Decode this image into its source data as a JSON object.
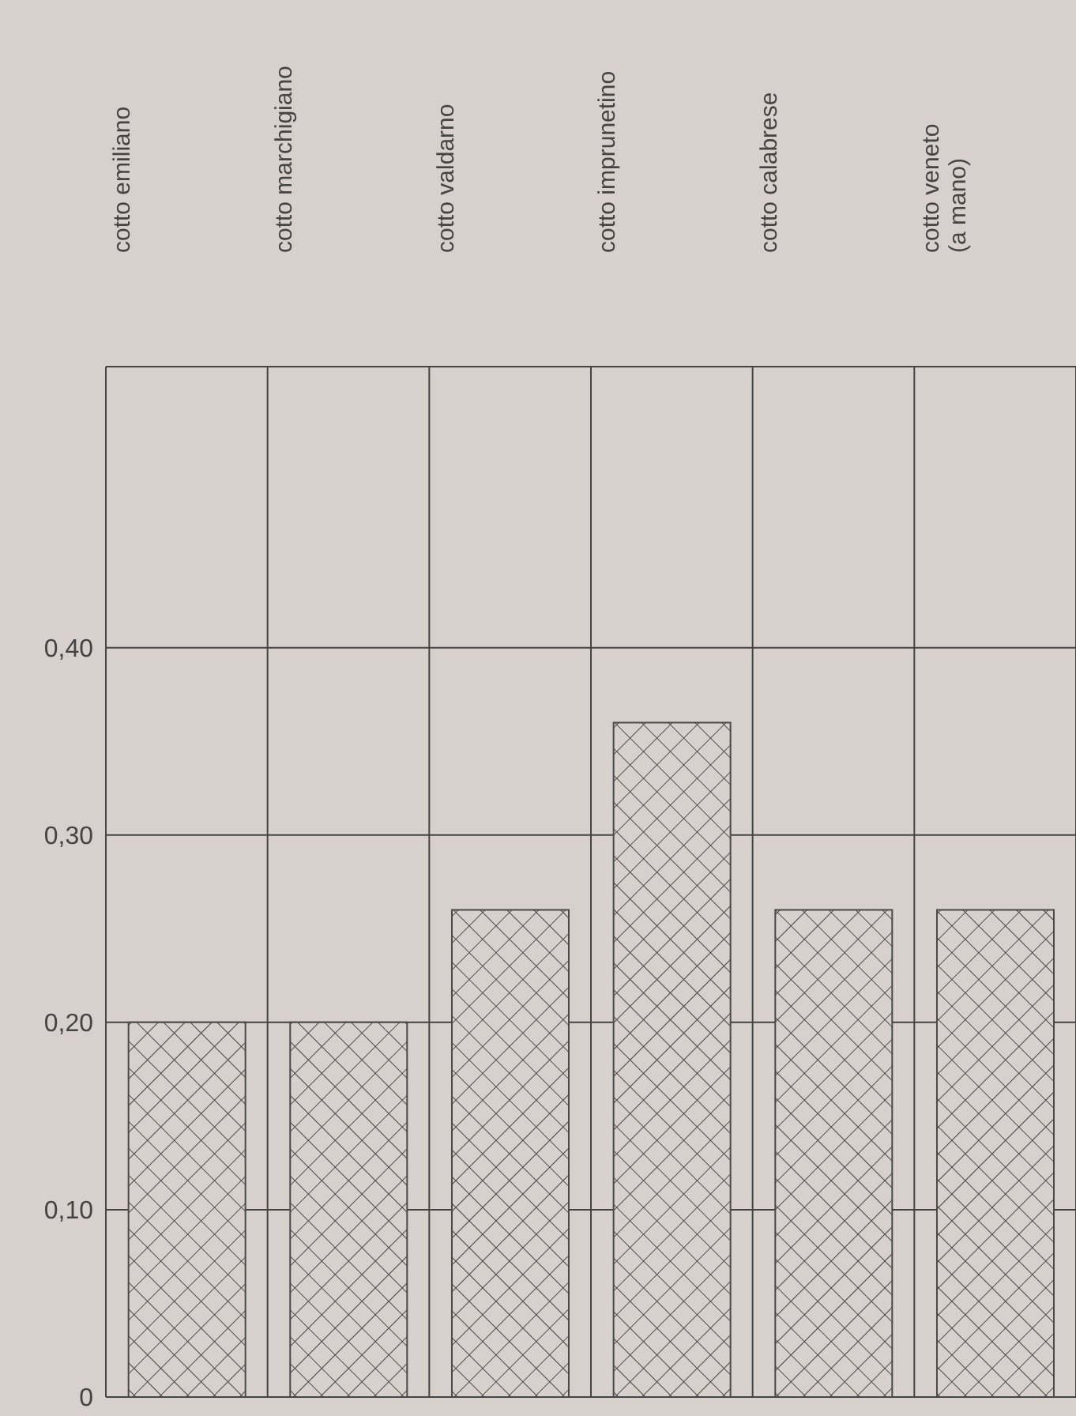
{
  "chart_data": {
    "type": "bar",
    "categories": [
      "cotto emiliano",
      "cotto marchigiano",
      "cotto valdarno",
      "cotto imprunetino",
      "cotto calabrese",
      "cotto veneto\n(a mano)"
    ],
    "values": [
      0.2,
      0.2,
      0.26,
      0.36,
      0.26,
      0.26
    ],
    "color": "#4a4a4a",
    "ylim": [
      0,
      0.55
    ],
    "yticks": [
      {
        "value": 0,
        "label": "0"
      },
      {
        "value": 0.1,
        "label": "0,10"
      },
      {
        "value": 0.2,
        "label": "0,20"
      },
      {
        "value": 0.3,
        "label": "0,30"
      },
      {
        "value": 0.4,
        "label": "0,40"
      }
    ],
    "grid": true
  }
}
